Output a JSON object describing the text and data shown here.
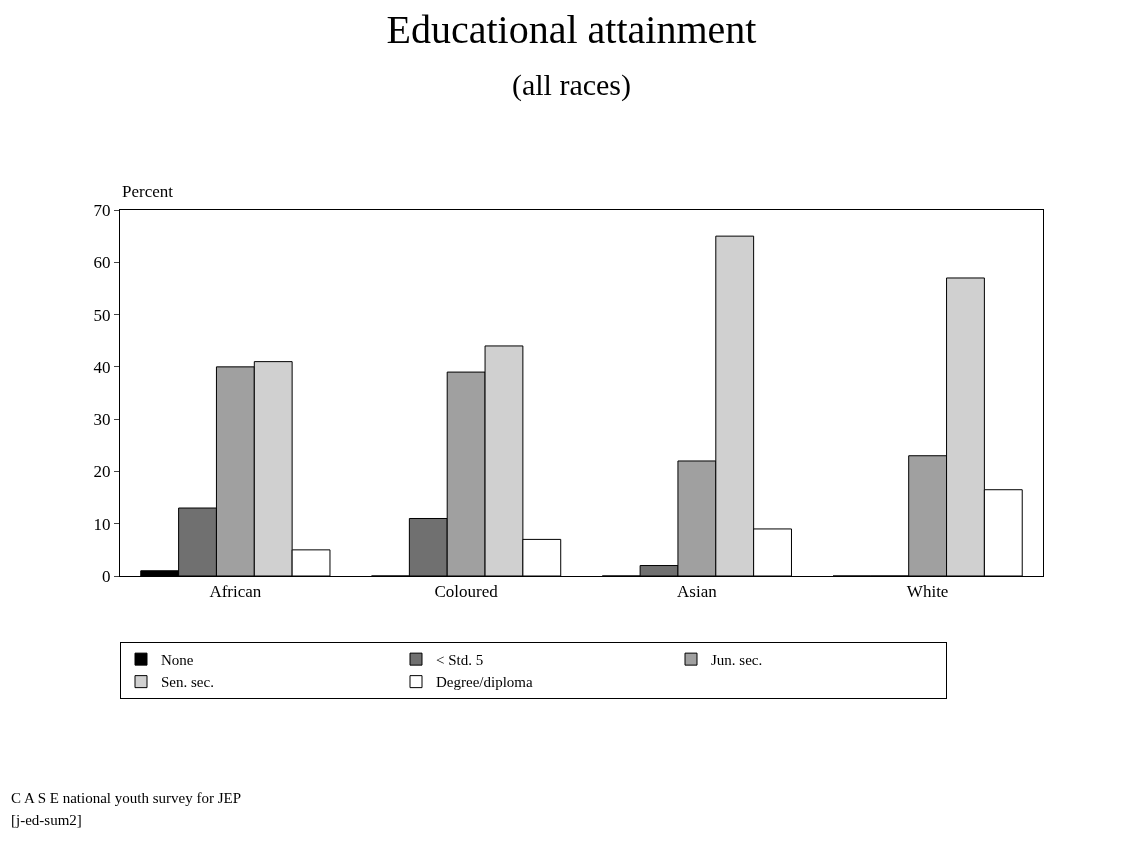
{
  "chart_data": {
    "type": "bar",
    "title": "Educational attainment",
    "subtitle": "(all races)",
    "ylabel": "Percent",
    "categories": [
      "African",
      "Coloured",
      "Asian",
      "White"
    ],
    "series": [
      {
        "name": "None",
        "color": "#000000",
        "values": [
          1,
          0,
          0,
          0
        ]
      },
      {
        "name": "< Std. 5",
        "color": "#707070",
        "values": [
          13,
          11,
          2,
          0
        ]
      },
      {
        "name": "Jun. sec.",
        "color": "#a0a0a0",
        "values": [
          40,
          39,
          22,
          23
        ]
      },
      {
        "name": "Sen. sec.",
        "color": "#d0d0d0",
        "values": [
          41,
          44,
          65,
          57
        ]
      },
      {
        "name": "Degree/diploma",
        "color": "#ffffff",
        "values": [
          5,
          7,
          9,
          16.5
        ]
      }
    ],
    "ylim": [
      0,
      70
    ],
    "yticks": [
      0,
      10,
      20,
      30,
      40,
      50,
      60,
      70
    ],
    "legend": "bottom",
    "annotations": [
      "C A S E national youth survey for JEP",
      "[j-ed-sum2]"
    ]
  }
}
